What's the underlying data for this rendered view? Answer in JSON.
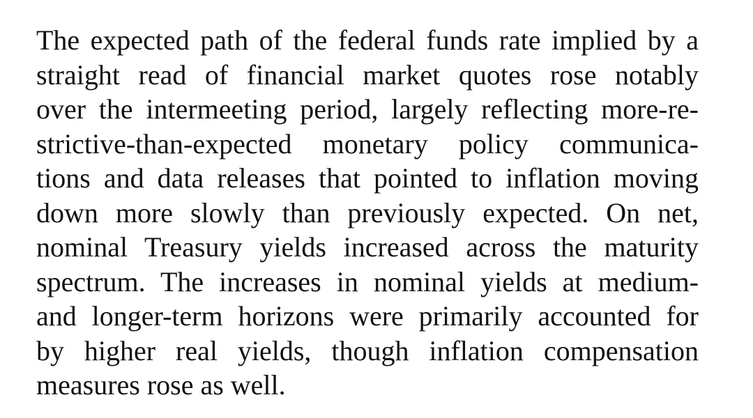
{
  "document": {
    "paragraph_lines": [
      "The expected path of the federal funds rate implied by a",
      "straight read of financial market quotes rose notably",
      "over the intermeeting period, largely reflecting more-re-",
      "strictive-than-expected monetary policy communica-",
      "tions and data releases that pointed to inflation moving",
      "down more slowly than previously expected.  On net,",
      "nominal Treasury yields increased across the maturity",
      "spectrum.  The increases in nominal yields at medium-",
      "and longer-term horizons were primarily accounted for",
      "by higher real yields, though inflation compensation",
      "measures rose as well."
    ]
  }
}
